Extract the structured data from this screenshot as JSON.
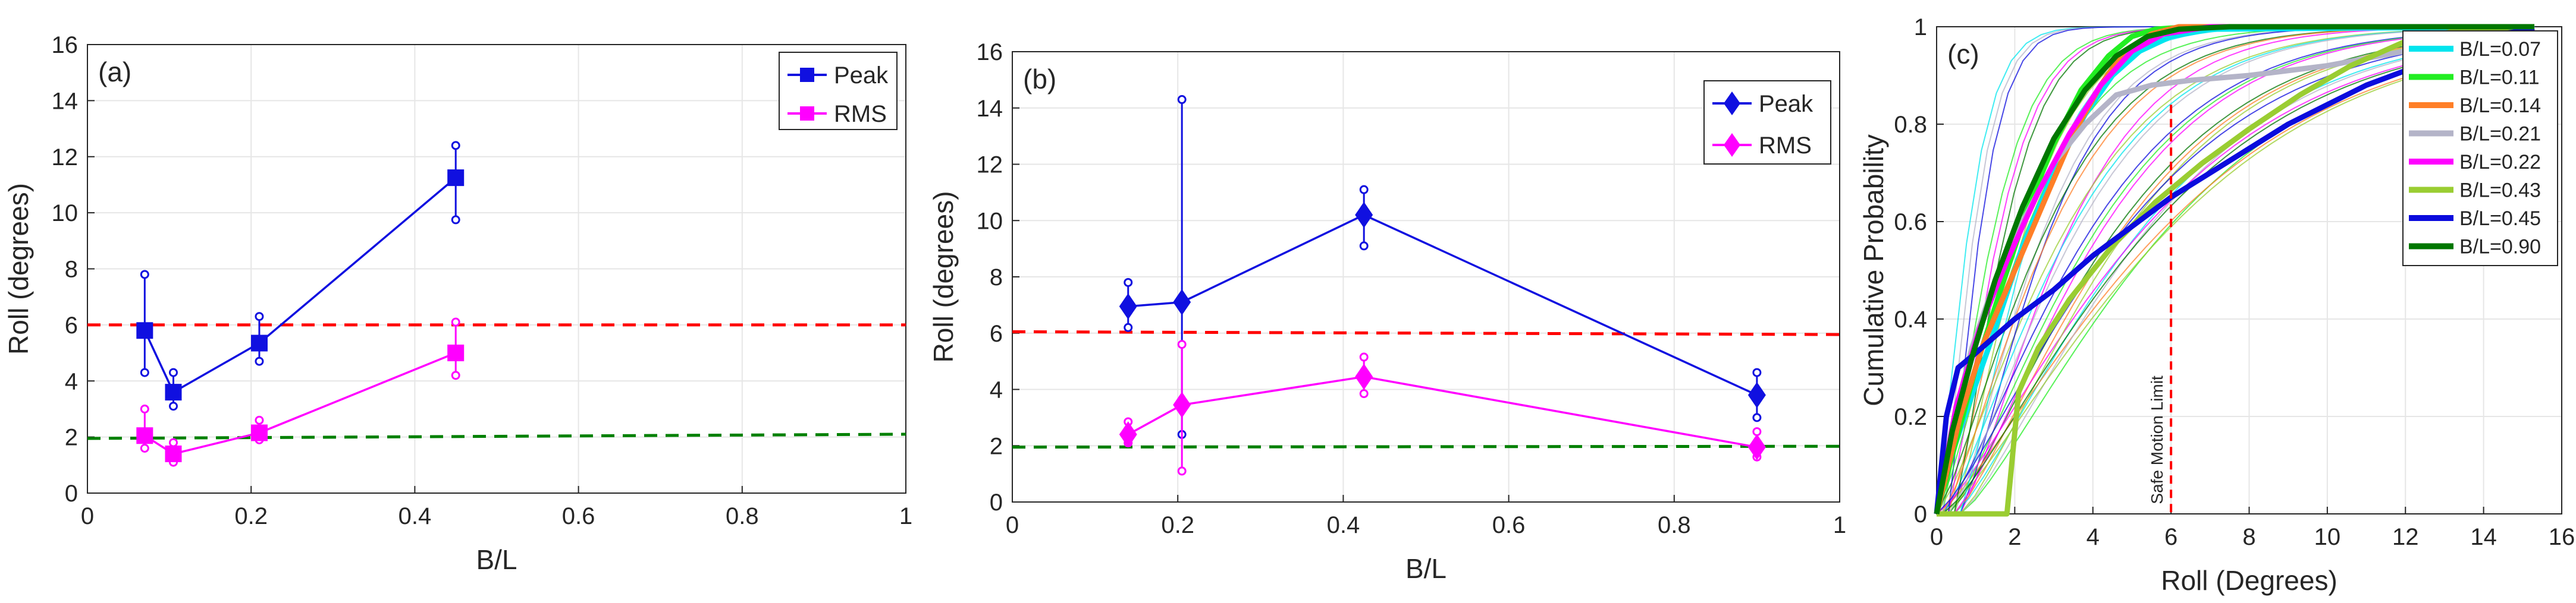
{
  "chart_data": [
    {
      "type": "line",
      "panel_label": "(a)",
      "xlabel": "B/L",
      "ylabel": "Roll (degrees)",
      "xlim": [
        0,
        1
      ],
      "ylim": [
        0,
        16
      ],
      "x_ticks": [
        "0",
        "0.2",
        "0.4",
        "0.6",
        "0.8",
        "1"
      ],
      "y_ticks": [
        "0",
        "2",
        "4",
        "6",
        "8",
        "10",
        "12",
        "14",
        "16"
      ],
      "grid": true,
      "legend_position": "top-right",
      "marker": "square",
      "series": [
        {
          "name": "Peak",
          "color": "#1010e0",
          "x": [
            0.07,
            0.105,
            0.21,
            0.45
          ],
          "y": [
            5.8,
            3.6,
            5.35,
            11.25
          ],
          "err_low": [
            4.3,
            3.1,
            4.7,
            9.75
          ],
          "err_high": [
            7.8,
            4.3,
            6.3,
            12.4
          ]
        },
        {
          "name": "RMS",
          "color": "#ff00ff",
          "x": [
            0.07,
            0.105,
            0.21,
            0.45
          ],
          "y": [
            2.05,
            1.4,
            2.15,
            5.0
          ],
          "err_low": [
            1.6,
            1.1,
            1.9,
            4.2
          ],
          "err_high": [
            3.0,
            1.8,
            2.6,
            6.1
          ]
        }
      ],
      "reference_lines": [
        {
          "color": "#ff0000",
          "y_start": 6.0,
          "y_end": 6.0
        },
        {
          "color": "#008000",
          "y_start": 1.95,
          "y_end": 2.1
        }
      ]
    },
    {
      "type": "line",
      "panel_label": "(b)",
      "xlabel": "B/L",
      "ylabel": "Roll (degrees)",
      "xlim": [
        0,
        1
      ],
      "ylim": [
        0,
        16
      ],
      "x_ticks": [
        "0",
        "0.2",
        "0.4",
        "0.6",
        "0.8",
        "1"
      ],
      "y_ticks": [
        "0",
        "2",
        "4",
        "6",
        "8",
        "10",
        "12",
        "14",
        "16"
      ],
      "grid": true,
      "legend_position": "upper-right",
      "marker": "diamond",
      "series": [
        {
          "name": "Peak",
          "color": "#1010e0",
          "x": [
            0.14,
            0.205,
            0.425,
            0.9
          ],
          "y": [
            6.95,
            7.1,
            10.2,
            3.8
          ],
          "err_low": [
            6.2,
            2.4,
            9.1,
            3.0
          ],
          "err_high": [
            7.8,
            14.3,
            11.1,
            4.6
          ]
        },
        {
          "name": "RMS",
          "color": "#ff00ff",
          "x": [
            0.14,
            0.205,
            0.425,
            0.9
          ],
          "y": [
            2.4,
            3.45,
            4.45,
            1.95
          ],
          "err_low": [
            2.1,
            1.1,
            3.85,
            1.6
          ],
          "err_high": [
            2.85,
            5.6,
            5.15,
            2.5
          ]
        }
      ],
      "reference_lines": [
        {
          "color": "#ff0000",
          "y_start": 6.05,
          "y_end": 5.95
        },
        {
          "color": "#008000",
          "y_start": 1.95,
          "y_end": 1.98
        }
      ]
    },
    {
      "type": "line",
      "panel_label": "(c)",
      "xlabel": "Roll (Degrees)",
      "ylabel": "Cumulative Probability",
      "xlim": [
        0,
        16
      ],
      "ylim": [
        0,
        1
      ],
      "x_ticks": [
        "0",
        "2",
        "4",
        "6",
        "8",
        "10",
        "12",
        "14",
        "16"
      ],
      "y_ticks": [
        "0",
        "0.2",
        "0.4",
        "0.6",
        "0.8",
        "1"
      ],
      "grid": true,
      "legend_position": "top-right",
      "vline": {
        "x": 6,
        "label": "Safe Motion Limit",
        "color": "#ff0000"
      },
      "thin_curve_count": 32,
      "series": [
        {
          "name": "B/L=0.07",
          "color": "#00e5ee",
          "x": [
            0,
            0.3,
            0.8,
            1.5,
            2.2,
            3.0,
            3.8,
            4.5,
            5.2,
            6.0,
            7.0,
            15.3
          ],
          "y": [
            0,
            0.1,
            0.22,
            0.38,
            0.55,
            0.7,
            0.82,
            0.9,
            0.95,
            0.98,
            0.995,
            1
          ]
        },
        {
          "name": "B/L=0.11",
          "color": "#22ee22",
          "x": [
            0,
            0.5,
            1.0,
            1.6,
            2.3,
            3.0,
            3.7,
            4.4,
            5.0,
            5.6,
            6.5,
            15.3
          ],
          "y": [
            0,
            0.15,
            0.3,
            0.45,
            0.62,
            0.76,
            0.87,
            0.94,
            0.98,
            0.995,
            1,
            1
          ]
        },
        {
          "name": "B/L=0.14",
          "color": "#ff7f27",
          "x": [
            0,
            0.6,
            1.2,
            2.0,
            2.8,
            3.5,
            4.2,
            4.8,
            5.5,
            6.2,
            15.3
          ],
          "y": [
            0,
            0.2,
            0.35,
            0.5,
            0.65,
            0.78,
            0.88,
            0.95,
            0.985,
            1,
            1
          ]
        },
        {
          "name": "B/L=0.21",
          "color": "#b4b4c8",
          "x": [
            0,
            0.4,
            0.9,
            1.5,
            2.2,
            3.0,
            3.8,
            4.6,
            5.5,
            6.5,
            8.0,
            10.0,
            12.0,
            13.5,
            15.3
          ],
          "y": [
            0,
            0.18,
            0.34,
            0.48,
            0.6,
            0.72,
            0.8,
            0.86,
            0.88,
            0.89,
            0.9,
            0.92,
            0.95,
            0.98,
            0.995
          ]
        },
        {
          "name": "B/L=0.22",
          "color": "#ff00ff",
          "x": [
            0,
            0.5,
            1.1,
            1.8,
            2.6,
            3.4,
            4.2,
            5.0,
            5.8,
            7.0,
            15.3
          ],
          "y": [
            0,
            0.22,
            0.38,
            0.52,
            0.66,
            0.78,
            0.88,
            0.95,
            0.985,
            1,
            1
          ]
        },
        {
          "name": "B/L=0.43",
          "color": "#9acd32",
          "x": [
            0,
            1.8,
            2.1,
            2.6,
            3.4,
            4.5,
            5.6,
            6.8,
            8.0,
            9.3,
            10.6,
            12.0,
            13.5,
            15.3
          ],
          "y": [
            0,
            0.0,
            0.25,
            0.34,
            0.44,
            0.55,
            0.64,
            0.72,
            0.79,
            0.86,
            0.92,
            0.97,
            0.995,
            1
          ]
        },
        {
          "name": "B/L=0.45",
          "color": "#0b0bdd",
          "x": [
            0,
            0.25,
            0.55,
            1.0,
            2.0,
            3.0,
            4.0,
            5.0,
            6.0,
            7.0,
            8.0,
            9.0,
            10.0,
            11.0,
            12.0,
            13.0,
            14.0,
            15.3
          ],
          "y": [
            0,
            0.2,
            0.3,
            0.33,
            0.4,
            0.46,
            0.53,
            0.59,
            0.65,
            0.7,
            0.75,
            0.8,
            0.84,
            0.88,
            0.91,
            0.95,
            0.98,
            0.995
          ]
        },
        {
          "name": "B/L=0.90",
          "color": "#007700",
          "x": [
            0,
            0.4,
            0.9,
            1.5,
            2.2,
            3.0,
            3.8,
            4.6,
            5.4,
            6.2,
            7.5,
            15.3
          ],
          "y": [
            0,
            0.17,
            0.32,
            0.48,
            0.63,
            0.77,
            0.87,
            0.94,
            0.98,
            0.995,
            1,
            1
          ]
        }
      ]
    }
  ]
}
